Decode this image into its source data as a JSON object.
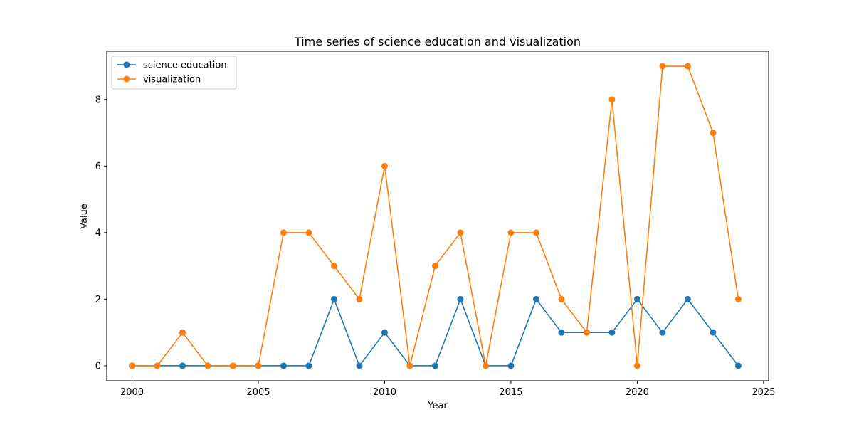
{
  "chart_data": {
    "type": "line",
    "title": "Time series of science education and visualization",
    "xlabel": "Year",
    "ylabel": "Value",
    "xlim": [
      1999.0,
      2025.2
    ],
    "ylim": [
      -0.45,
      9.45
    ],
    "xticks": [
      2000,
      2005,
      2010,
      2015,
      2020,
      2025
    ],
    "yticks": [
      0,
      2,
      4,
      6,
      8
    ],
    "grid": false,
    "legend_position": "top-left",
    "x": [
      2000,
      2001,
      2002,
      2003,
      2004,
      2005,
      2006,
      2007,
      2008,
      2009,
      2010,
      2011,
      2012,
      2013,
      2014,
      2015,
      2016,
      2017,
      2018,
      2019,
      2020,
      2021,
      2022,
      2023,
      2024
    ],
    "series": [
      {
        "name": "science education",
        "color": "#1f77b4",
        "values": [
          0,
          0,
          0,
          0,
          0,
          0,
          0,
          0,
          2,
          0,
          1,
          0,
          0,
          2,
          0,
          0,
          2,
          1,
          1,
          1,
          2,
          1,
          2,
          1,
          0
        ]
      },
      {
        "name": "visualization",
        "color": "#ff7f0e",
        "values": [
          0,
          0,
          1,
          0,
          0,
          0,
          4,
          4,
          3,
          2,
          6,
          0,
          3,
          4,
          0,
          4,
          4,
          2,
          1,
          8,
          0,
          9,
          9,
          7,
          2
        ]
      }
    ]
  }
}
